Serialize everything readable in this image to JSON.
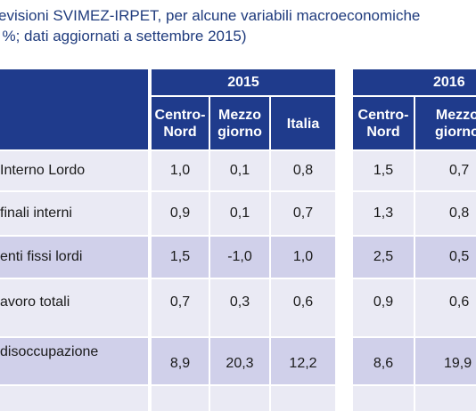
{
  "title": {
    "line1": "evisioni SVIMEZ-IRPET, per alcune variabili macroeconomiche",
    "line2": "i %; dati aggiornati a settembre 2015)"
  },
  "colors": {
    "header": "#1f3b8c",
    "row_light": "#eaeaf4",
    "row_mid": "#d0d0ea",
    "title": "#1f3b7d"
  },
  "header": {
    "year1": "2015",
    "year2": "2016",
    "cols": [
      "Centro-\nNord",
      "Mezzo\ngiorno",
      "Italia",
      "Centro-\nNord",
      "Mezzo\ngiorno"
    ]
  },
  "rows": [
    {
      "label": " Interno Lordo",
      "values": [
        "1,0",
        "0,1",
        "0,8",
        "1,5",
        "0,7"
      ]
    },
    {
      "label": " finali interni",
      "values": [
        "0,9",
        "0,1",
        "0,7",
        "1,3",
        "0,8"
      ]
    },
    {
      "label": "enti fissi lordi",
      "values": [
        "1,5",
        "-1,0",
        "1,0",
        "2,5",
        "0,5"
      ]
    },
    {
      "label": "avoro totali",
      "values": [
        "0,7",
        "0,3",
        "0,6",
        "0,9",
        "0,6"
      ]
    },
    {
      "label": "disoccupazione",
      "values": [
        "8,9",
        "20,3",
        "12,2",
        "8,6",
        "19,9"
      ]
    }
  ]
}
